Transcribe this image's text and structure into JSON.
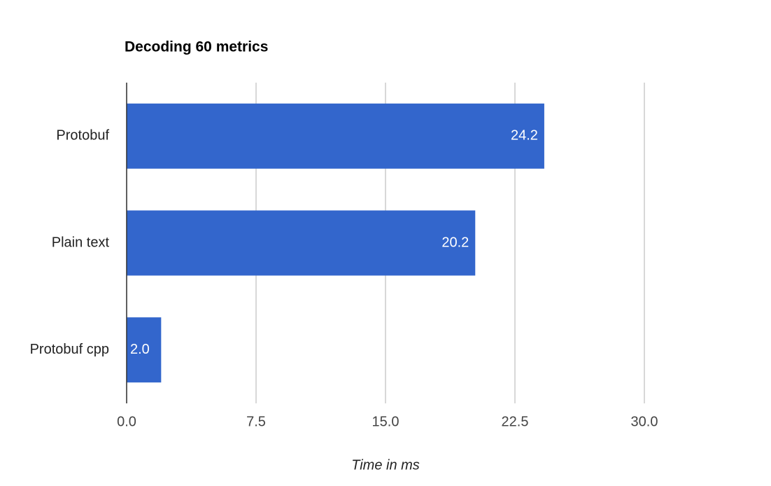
{
  "chart_data": {
    "type": "bar",
    "orientation": "horizontal",
    "title": "Decoding 60 metrics",
    "x_label": "Time in ms",
    "categories": [
      "Protobuf",
      "Plain text",
      "Protobuf cpp"
    ],
    "values": [
      24.2,
      20.2,
      2.0
    ],
    "value_labels": [
      "24.2",
      "20.2",
      "2.0"
    ],
    "color": "#3366cc",
    "xlim": [
      0,
      30
    ],
    "xticks": [
      {
        "value": 0,
        "label": "0.0"
      },
      7.5,
      {
        "value": 15,
        "label": "15.0"
      },
      22.5,
      {
        "value": 30,
        "label": "30.0"
      }
    ],
    "grid": true
  }
}
